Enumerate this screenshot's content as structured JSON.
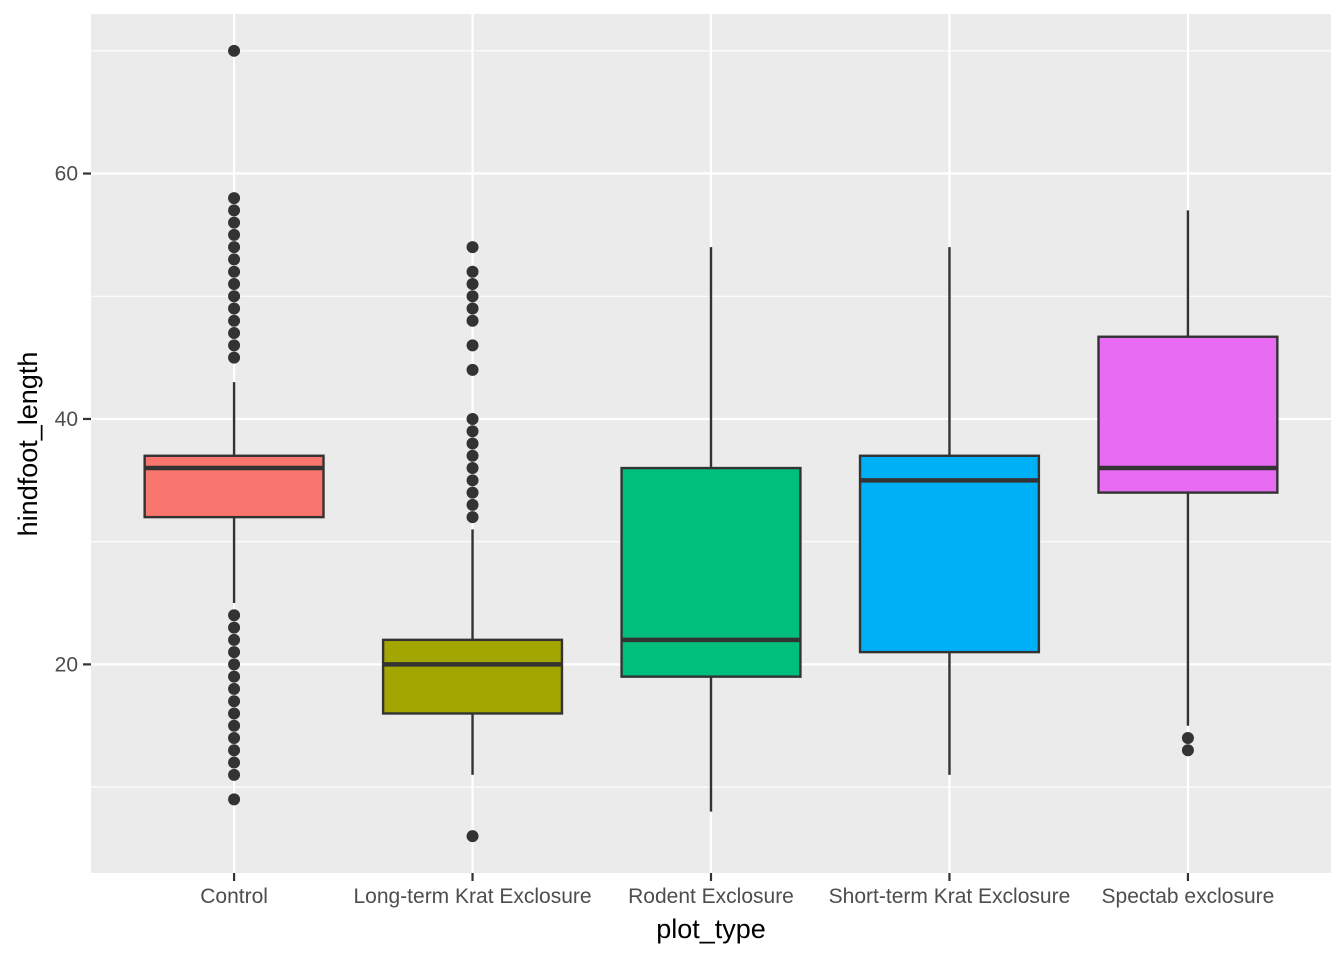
{
  "chart_data": {
    "type": "boxplot",
    "xlabel": "plot_type",
    "ylabel": "hindfoot_length",
    "ylim": [
      3,
      73
    ],
    "y_ticks": [
      20,
      40,
      60
    ],
    "y_tick_labels": [
      "20",
      "40",
      "60"
    ],
    "grid": true,
    "legend": "none",
    "categories": [
      "Control",
      "Long-term Krat Exclosure",
      "Rodent Exclosure",
      "Short-term Krat Exclosure",
      "Spectab exclosure"
    ],
    "boxes": [
      {
        "category": "Control",
        "color": "#F8766D",
        "q1": 32,
        "median": 36,
        "q3": 37,
        "whisker_low": 25,
        "whisker_high": 43,
        "outliers": [
          70,
          58,
          57,
          56,
          55,
          54,
          53,
          52,
          51,
          50,
          49,
          48,
          47,
          46,
          45,
          24,
          23,
          22,
          21,
          20,
          19,
          18,
          17,
          16,
          15,
          14,
          13,
          12,
          11,
          9
        ]
      },
      {
        "category": "Long-term Krat Exclosure",
        "color": "#A3A500",
        "q1": 16,
        "median": 20,
        "q3": 22,
        "whisker_low": 11,
        "whisker_high": 31,
        "outliers": [
          54,
          52,
          51,
          50,
          49,
          48,
          46,
          44,
          40,
          39,
          38,
          37,
          36,
          35,
          34,
          33,
          32,
          6
        ]
      },
      {
        "category": "Rodent Exclosure",
        "color": "#00BF7D",
        "q1": 19,
        "median": 22,
        "q3": 36,
        "whisker_low": 8,
        "whisker_high": 54,
        "outliers": []
      },
      {
        "category": "Short-term Krat Exclosure",
        "color": "#00B0F6",
        "q1": 21,
        "median": 35,
        "q3": 37,
        "whisker_low": 11,
        "whisker_high": 54,
        "outliers": []
      },
      {
        "category": "Spectab exclosure",
        "color": "#E76BF3",
        "q1": 34,
        "median": 36,
        "q3": 46.7,
        "whisker_low": 15,
        "whisker_high": 57,
        "outliers": [
          14,
          13
        ]
      }
    ],
    "colors": {
      "panel_background": "#EBEBEB",
      "grid_major": "#FFFFFF",
      "grid_minor": "#F5F5F5",
      "box_outline": "#333333",
      "outlier": "#333333",
      "tick": "#333333"
    }
  }
}
